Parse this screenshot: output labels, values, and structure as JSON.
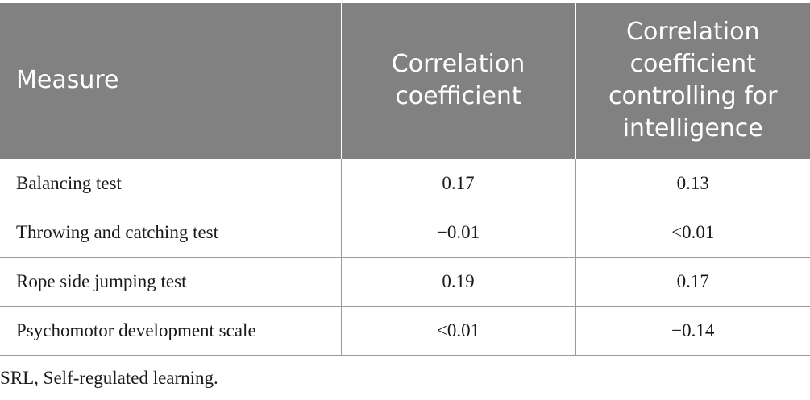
{
  "table": {
    "headers": [
      "Measure",
      "Correlation coefficient",
      "Correlation coefficient controlling for intelligence"
    ],
    "rows": [
      [
        "Balancing test",
        "0.17",
        "0.13"
      ],
      [
        "Throwing and catching test",
        "−0.01",
        "<0.01"
      ],
      [
        "Rope side jumping test",
        "0.19",
        "0.17"
      ],
      [
        "Psychomotor development scale",
        "<0.01",
        "−0.14"
      ]
    ]
  },
  "footnote": "SRL, Self-regulated learning.",
  "colors": {
    "header_background": "#808180",
    "header_text": "#ffffff",
    "rule": "#9a9a9a"
  }
}
